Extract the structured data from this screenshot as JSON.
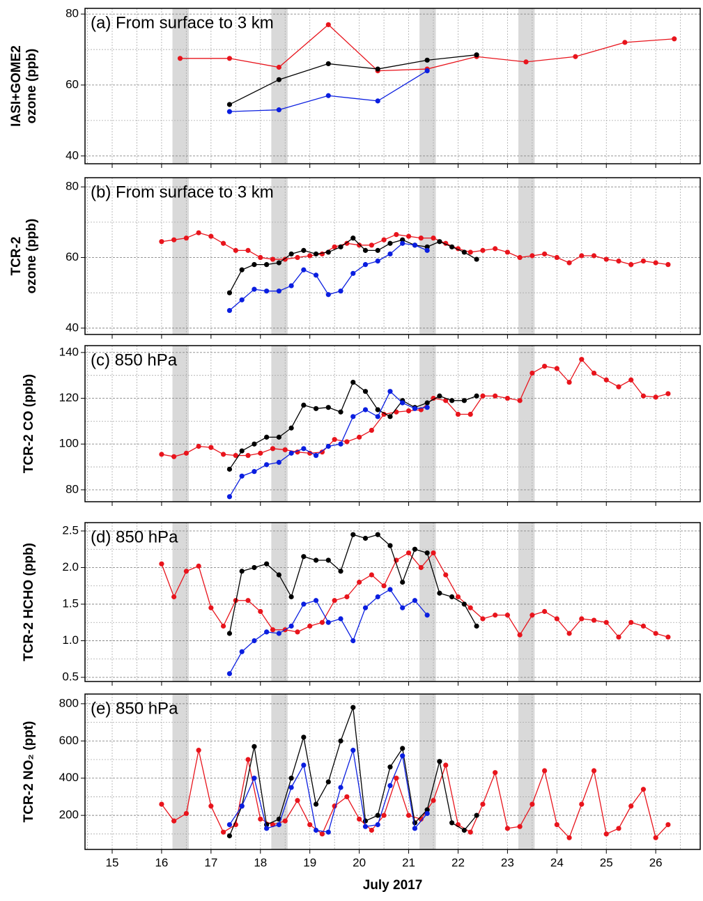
{
  "chart_data": [
    {
      "type": "line",
      "annotation": "(a) From surface to 3 km",
      "ylabel": [
        "IASI+GOME2",
        "ozone (ppb)"
      ],
      "xlim": [
        14.45,
        26.9
      ],
      "xticks": [
        15,
        16,
        17,
        18,
        19,
        20,
        21,
        22,
        23,
        24,
        25,
        26
      ],
      "minor_xticks": [
        14.5,
        15.5,
        16.5,
        17.5,
        18.5,
        19.5,
        20.5,
        21.5,
        22.5,
        23.5,
        24.5,
        25.5,
        26.5
      ],
      "ylim": [
        37.8,
        81.6
      ],
      "yticks": [
        40,
        60,
        80
      ],
      "minor_yticks": [
        50,
        70
      ],
      "grid": true,
      "shaded_spans": [
        [
          16.22,
          16.55
        ],
        [
          18.22,
          18.55
        ],
        [
          21.22,
          21.55
        ],
        [
          23.22,
          23.55
        ]
      ],
      "series": [
        {
          "color": "#e8141c",
          "x": [
            16.375,
            17.375,
            18.375,
            19.375,
            20.375,
            21.375,
            22.375,
            23.375,
            24.375,
            25.375,
            26.375
          ],
          "values": [
            67.5,
            67.5,
            65,
            77,
            64,
            64.5,
            68,
            66.5,
            68,
            72,
            73
          ]
        },
        {
          "color": "#000000",
          "x": [
            17.375,
            18.375,
            19.375,
            20.375,
            21.375,
            22.375
          ],
          "values": [
            54.5,
            61.5,
            66,
            64.5,
            67,
            68.5
          ]
        },
        {
          "color": "#0a1ee0",
          "x": [
            17.375,
            18.375,
            19.375,
            20.375,
            21.375
          ],
          "values": [
            52.5,
            53,
            57,
            55.5,
            64
          ]
        }
      ]
    },
    {
      "type": "line",
      "annotation": "(b) From surface to 3 km",
      "ylabel": [
        "TCR-2",
        "ozone (ppb)"
      ],
      "xlim": [
        14.45,
        26.9
      ],
      "xticks": [
        15,
        16,
        17,
        18,
        19,
        20,
        21,
        22,
        23,
        24,
        25,
        26
      ],
      "minor_xticks": [
        14.5,
        15.5,
        16.5,
        17.5,
        18.5,
        19.5,
        20.5,
        21.5,
        22.5,
        23.5,
        24.5,
        25.5,
        26.5
      ],
      "ylim": [
        38.2,
        82.6
      ],
      "yticks": [
        40,
        60,
        80
      ],
      "minor_yticks": [
        50,
        70
      ],
      "grid": true,
      "series": [
        {
          "color": "#e8141c",
          "x": [
            16,
            16.25,
            16.5,
            16.75,
            17,
            17.25,
            17.5,
            17.75,
            18,
            18.25,
            18.5,
            18.75,
            19,
            19.25,
            19.5,
            19.75,
            20,
            20.25,
            20.5,
            20.75,
            21,
            21.25,
            21.5,
            21.75,
            22,
            22.25,
            22.5,
            22.75,
            23,
            23.25,
            23.5,
            23.75,
            24,
            24.25,
            24.5,
            24.75,
            25,
            25.25,
            25.5,
            25.75,
            26,
            26.25
          ],
          "values": [
            64.5,
            65,
            65.5,
            67,
            66,
            64,
            62,
            62,
            60,
            59.5,
            59.5,
            60,
            60.5,
            61,
            63,
            64,
            63.5,
            63.5,
            65,
            66.5,
            66,
            65.5,
            65.5,
            64,
            62.5,
            61.5,
            62,
            62.5,
            61.5,
            60,
            60.5,
            61,
            60,
            58.5,
            60.5,
            60.5,
            59.5,
            59,
            58,
            59,
            58.5,
            58
          ]
        },
        {
          "color": "#000000",
          "x": [
            17.375,
            17.625,
            17.875,
            18.125,
            18.375,
            18.625,
            18.875,
            19.125,
            19.375,
            19.625,
            19.875,
            20.125,
            20.375,
            20.625,
            20.875,
            21.125,
            21.375,
            21.625,
            21.875,
            22.125,
            22.375
          ],
          "values": [
            50,
            56.5,
            58,
            58,
            58.5,
            61,
            62,
            61,
            61.5,
            63,
            65.5,
            62,
            62,
            64,
            65,
            63.5,
            63,
            64.5,
            63,
            61.5,
            59.5
          ]
        },
        {
          "color": "#0a1ee0",
          "x": [
            17.375,
            17.625,
            17.875,
            18.125,
            18.375,
            18.625,
            18.875,
            19.125,
            19.375,
            19.625,
            19.875,
            20.125,
            20.375,
            20.625,
            20.875,
            21.125,
            21.375
          ],
          "values": [
            45,
            48,
            51,
            50.5,
            50.5,
            52,
            56.5,
            55,
            49.5,
            50.5,
            55.5,
            58,
            59,
            61,
            64,
            63.5,
            62
          ]
        }
      ]
    },
    {
      "type": "line",
      "annotation": "(c) 850 hPa",
      "ylabel": "TCR-2 CO (ppb)",
      "xlim": [
        14.45,
        26.9
      ],
      "xticks": [
        15,
        16,
        17,
        18,
        19,
        20,
        21,
        22,
        23,
        24,
        25,
        26
      ],
      "minor_xticks": [
        14.5,
        15.5,
        16.5,
        17.5,
        18.5,
        19.5,
        20.5,
        21.5,
        22.5,
        23.5,
        24.5,
        25.5,
        26.5
      ],
      "ylim": [
        74.8,
        143
      ],
      "yticks": [
        80,
        100,
        120,
        140
      ],
      "minor_yticks": [
        90,
        110,
        130
      ],
      "grid": true,
      "series": [
        {
          "color": "#e8141c",
          "x": [
            16,
            16.25,
            16.5,
            16.75,
            17,
            17.25,
            17.5,
            17.75,
            18,
            18.25,
            18.5,
            18.75,
            19,
            19.25,
            19.5,
            19.75,
            20,
            20.25,
            20.5,
            20.75,
            21,
            21.25,
            21.5,
            21.75,
            22,
            22.25,
            22.5,
            22.75,
            23,
            23.25,
            23.5,
            23.75,
            24,
            24.25,
            24.5,
            24.75,
            25,
            25.25,
            25.5,
            25.75,
            26,
            26.25
          ],
          "values": [
            95.5,
            94.5,
            96,
            99,
            98.5,
            95.5,
            95,
            95,
            96,
            98,
            97.5,
            96.5,
            96,
            96.5,
            102,
            101,
            103,
            106,
            113,
            114,
            114.5,
            115,
            120,
            119,
            113,
            113,
            121,
            121,
            120,
            119,
            131,
            134,
            133,
            127,
            137,
            131,
            128,
            125,
            128,
            121,
            120.5,
            122
          ]
        },
        {
          "color": "#000000",
          "x": [
            17.375,
            17.625,
            17.875,
            18.125,
            18.375,
            18.625,
            18.875,
            19.125,
            19.375,
            19.625,
            19.875,
            20.125,
            20.375,
            20.625,
            20.875,
            21.125,
            21.375,
            21.625,
            21.875,
            22.125,
            22.375
          ],
          "values": [
            89,
            97,
            100,
            103,
            103,
            107,
            117,
            115.5,
            116,
            114,
            127,
            123,
            115,
            112,
            119,
            116,
            118,
            121,
            119,
            119,
            121
          ]
        },
        {
          "color": "#0a1ee0",
          "x": [
            17.375,
            17.625,
            17.875,
            18.125,
            18.375,
            18.625,
            18.875,
            19.125,
            19.375,
            19.625,
            19.875,
            20.125,
            20.375,
            20.625,
            20.875,
            21.125,
            21.375
          ],
          "values": [
            77,
            86,
            88,
            91,
            92,
            96,
            98,
            95,
            99,
            100,
            112,
            115,
            112,
            123,
            118,
            115.5,
            116
          ]
        }
      ]
    },
    {
      "type": "line",
      "annotation": "(d) 850 hPa",
      "ylabel": "TCR-2 HCHO (ppb)",
      "xlim": [
        14.45,
        26.9
      ],
      "xticks": [
        15,
        16,
        17,
        18,
        19,
        20,
        21,
        22,
        23,
        24,
        25,
        26
      ],
      "minor_xticks": [
        14.5,
        15.5,
        16.5,
        17.5,
        18.5,
        19.5,
        20.5,
        21.5,
        22.5,
        23.5,
        24.5,
        25.5,
        26.5
      ],
      "ylim": [
        0.443,
        2.614
      ],
      "yticks": [
        0.5,
        {
          "value": 1,
          "label": "1.0"
        },
        1.5,
        {
          "value": 2,
          "label": "2.0"
        },
        2.5
      ],
      "minor_yticks": [
        0.75,
        1.25,
        1.75,
        2.25
      ],
      "grid": true,
      "series": [
        {
          "color": "#e8141c",
          "x": [
            16,
            16.25,
            16.5,
            16.75,
            17,
            17.25,
            17.5,
            17.75,
            18,
            18.25,
            18.5,
            18.75,
            19,
            19.25,
            19.5,
            19.75,
            20,
            20.25,
            20.5,
            20.75,
            21,
            21.25,
            21.5,
            21.75,
            22,
            22.25,
            22.5,
            22.75,
            23,
            23.25,
            23.5,
            23.75,
            24,
            24.25,
            24.5,
            24.75,
            25,
            25.25,
            25.5,
            25.75,
            26,
            26.25
          ],
          "values": [
            2.05,
            1.6,
            1.95,
            2.02,
            1.45,
            1.2,
            1.55,
            1.55,
            1.4,
            1.15,
            1.15,
            1.12,
            1.2,
            1.25,
            1.55,
            1.6,
            1.8,
            1.9,
            1.75,
            2.1,
            2.2,
            2,
            2.2,
            1.9,
            1.6,
            1.45,
            1.3,
            1.35,
            1.35,
            1.08,
            1.35,
            1.4,
            1.3,
            1.1,
            1.3,
            1.28,
            1.25,
            1.05,
            1.25,
            1.2,
            1.1,
            1.05
          ]
        },
        {
          "color": "#000000",
          "x": [
            17.375,
            17.625,
            17.875,
            18.125,
            18.375,
            18.625,
            18.875,
            19.125,
            19.375,
            19.625,
            19.875,
            20.125,
            20.375,
            20.625,
            20.875,
            21.125,
            21.375,
            21.625,
            21.875,
            22.125,
            22.375
          ],
          "values": [
            1.1,
            1.95,
            2,
            2.05,
            1.9,
            1.6,
            2.15,
            2.1,
            2.1,
            1.95,
            2.45,
            2.4,
            2.45,
            2.3,
            1.8,
            2.25,
            2.2,
            1.65,
            1.6,
            1.5,
            1.2
          ]
        },
        {
          "color": "#0a1ee0",
          "x": [
            17.375,
            17.625,
            17.875,
            18.125,
            18.375,
            18.625,
            18.875,
            19.125,
            19.375,
            19.625,
            19.875,
            20.125,
            20.375,
            20.625,
            20.875,
            21.125,
            21.375
          ],
          "values": [
            0.55,
            0.85,
            1,
            1.12,
            1.1,
            1.2,
            1.5,
            1.55,
            1.25,
            1.3,
            1,
            1.45,
            1.6,
            1.7,
            1.45,
            1.55,
            1.35
          ]
        }
      ]
    },
    {
      "type": "line",
      "annotation": "(e) 850 hPa",
      "ylabel": "TCR-2 NO₂ (ppt)",
      "xlabel": "July 2017",
      "xlim": [
        14.45,
        26.9
      ],
      "xticks": [
        15,
        16,
        17,
        18,
        19,
        20,
        21,
        22,
        23,
        24,
        25,
        26
      ],
      "minor_xticks": [
        14.5,
        15.5,
        16.5,
        17.5,
        18.5,
        19.5,
        20.5,
        21.5,
        22.5,
        23.5,
        24.5,
        25.5,
        26.5
      ],
      "ylim": [
        17,
        852
      ],
      "yticks": [
        200,
        400,
        600,
        800
      ],
      "minor_yticks": [
        100,
        300,
        500,
        700
      ],
      "grid": true,
      "series": [
        {
          "color": "#e8141c",
          "x": [
            16,
            16.25,
            16.5,
            16.75,
            17,
            17.25,
            17.5,
            17.75,
            18,
            18.25,
            18.5,
            18.75,
            19,
            19.25,
            19.5,
            19.75,
            20,
            20.25,
            20.5,
            20.75,
            21,
            21.25,
            21.5,
            21.75,
            22,
            22.25,
            22.5,
            22.75,
            23,
            23.25,
            23.5,
            23.75,
            24,
            24.25,
            24.5,
            24.75,
            25,
            25.25,
            25.5,
            25.75,
            26,
            26.25
          ],
          "values": [
            260,
            170,
            210,
            550,
            250,
            110,
            150,
            500,
            180,
            150,
            170,
            280,
            150,
            100,
            250,
            300,
            180,
            120,
            200,
            400,
            200,
            180,
            280,
            470,
            150,
            110,
            260,
            430,
            130,
            140,
            260,
            440,
            150,
            80,
            260,
            440,
            100,
            130,
            250,
            340,
            80,
            150
          ]
        },
        {
          "color": "#000000",
          "x": [
            17.375,
            17.625,
            17.875,
            18.125,
            18.375,
            18.625,
            18.875,
            19.125,
            19.375,
            19.625,
            19.875,
            20.125,
            20.375,
            20.625,
            20.875,
            21.125,
            21.375,
            21.625,
            21.875,
            22.125,
            22.375
          ],
          "values": [
            90,
            250,
            570,
            150,
            180,
            400,
            620,
            260,
            380,
            600,
            780,
            170,
            200,
            460,
            560,
            160,
            230,
            490,
            160,
            120,
            200
          ]
        },
        {
          "color": "#0a1ee0",
          "x": [
            17.375,
            17.625,
            17.875,
            18.125,
            18.375,
            18.625,
            18.875,
            19.125,
            19.375,
            19.625,
            19.875,
            20.125,
            20.375,
            20.625,
            20.875,
            21.125,
            21.375
          ],
          "values": [
            150,
            250,
            400,
            130,
            150,
            350,
            470,
            120,
            110,
            350,
            550,
            140,
            150,
            360,
            520,
            130,
            210
          ]
        }
      ]
    }
  ]
}
